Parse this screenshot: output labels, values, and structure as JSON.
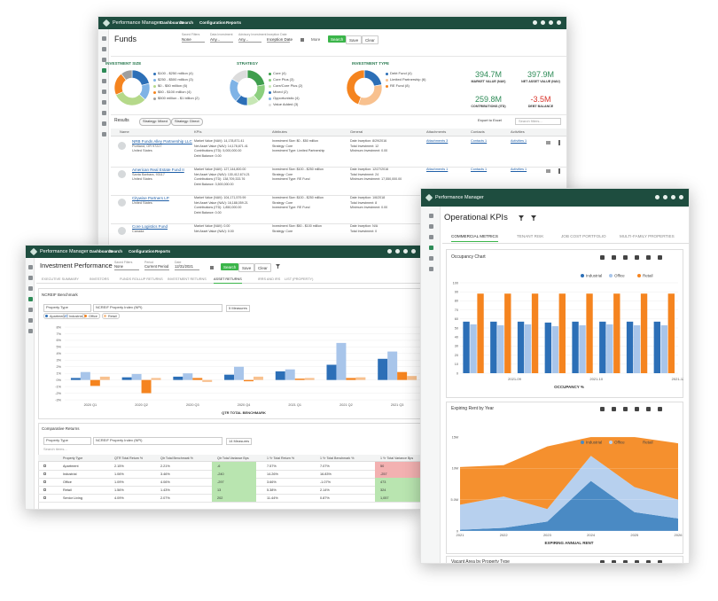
{
  "funds_window": {
    "nav": {
      "brand": "Performance Manager",
      "items": [
        "Dashboards",
        "Search",
        "Configuration",
        "Reports"
      ]
    },
    "title": "Funds",
    "filters": [
      {
        "label": "Saved Filters",
        "value": "None"
      },
      {
        "label": "Data Investment",
        "value": "Any..."
      },
      {
        "label": "Advisory Investment",
        "value": "Any..."
      },
      {
        "label": "Inception Date",
        "value": "Inception Date"
      }
    ],
    "more": "More",
    "buttons": [
      "Search",
      "Save",
      "Clear"
    ],
    "donuts": [
      {
        "title": "INVESTMENT SIZE",
        "labels": [
          "$100 - $250 million (4)",
          "$250 - $500 million (3)",
          "$0 - $50 million (6)",
          "$50 - $100 million (4)",
          "$500 million - $1 billion (2)"
        ],
        "values": [
          4,
          3,
          6,
          4,
          2
        ],
        "colors": [
          "#2c6fb7",
          "#7fb3e6",
          "#b5d98a",
          "#f5841f",
          "#9e9e9e"
        ]
      },
      {
        "title": "STRATEGY",
        "labels": [
          "Core (4)",
          "Core Plus (3)",
          "Core/Core Plus (2)",
          "Mixed (2)",
          "Opportunistic (4)",
          "Value Added (3)"
        ],
        "values": [
          4,
          3,
          2,
          2,
          4,
          3
        ],
        "colors": [
          "#3f9e4d",
          "#8ccf7e",
          "#c7e7b5",
          "#2c6fb7",
          "#7fb3e6",
          "#dcdcdc"
        ]
      },
      {
        "title": "INVESTMENT TYPE",
        "labels": [
          "Debt Fund (4)",
          "Limited Partnership (6)",
          "RE Fund (8)"
        ],
        "values": [
          4,
          6,
          8
        ],
        "colors": [
          "#2c6fb7",
          "#f8c18f",
          "#f5841f"
        ]
      }
    ],
    "kpis": [
      {
        "value": "394.7M",
        "label": "MARKET VALUE (NAV)"
      },
      {
        "value": "397.9M",
        "label": "NET ASSET VALUE (NAV)"
      },
      {
        "value": "259.8M",
        "label": "CONTRIBUTIONS (ITD)"
      },
      {
        "value": "-3.5M",
        "label": "DEBT BALANCE"
      }
    ],
    "results": {
      "label": "Results",
      "chips": [
        "Strategy: Mixed",
        "Strategy: Direct"
      ],
      "export": "Export to Excel",
      "search": "Search filters..."
    },
    "columns": [
      "Name",
      "KPIs",
      "Attributes",
      "General",
      "Attachments",
      "Contacts",
      "Activities"
    ],
    "rows": [
      {
        "name": "NRB Funds Alley Partnership LLC",
        "lines": [
          "Portland, OR 97227",
          "United States"
        ],
        "kpis": [
          "Market Value (NAV): 14,178,871.41",
          "Net Asset Value (NAV): 14,178,871.41",
          "Contributions (ITD): 5,000,000.00",
          "Debt Balance: 0.00"
        ],
        "attributes": [
          "Investment Size: $0 - $50 million",
          "Strategy: Core",
          "Investment Type: Limited Partnership"
        ],
        "general": [
          "Date Inception: 8/29/2016",
          "Total Investment: 12",
          "Minimum Investment: 0.00"
        ],
        "attachments": "Attachments 3",
        "contacts": "Contacts 1",
        "activities": "Activities 1"
      },
      {
        "name": "American Real Estate Fund II",
        "lines": [
          "Santa Barbara, 93117",
          "United States"
        ],
        "kpis": [
          "Market Value (NAV): 127,144,800.00",
          "Net Asset Value (NAV): 130,412,674.21",
          "Contributions (ITD): 138,709,333.76",
          "Debt Balance: 3,500,000.00"
        ],
        "attributes": [
          "Investment Size: $100 - $250 million",
          "Strategy: Core",
          "Investment Type: RE Fund"
        ],
        "general": [
          "Date Inception: 12/27/2016",
          "Total Investment: 24",
          "Minimum Investment: 17,550,000.00"
        ],
        "attachments": "Attachments 1",
        "contacts": "Contacts 1",
        "activities": "Activities 1"
      },
      {
        "name": "Citywise Partners LP",
        "lines": [
          "United States"
        ],
        "kpis": [
          "Market Value (NAV): 104,171,579.99",
          "Net Asset Value (NAV): 16,188,059.21",
          "Contributions (ITD): 1,850,000.00",
          "Debt Balance: 0.00"
        ],
        "attributes": [
          "Investment Size: $100 - $250 million",
          "Strategy: Core",
          "Investment Type: RE Fund"
        ],
        "general": [
          "Date Inception: 1/6/2018",
          "Total Investment: 8",
          "Minimum Investment: 0.00"
        ],
        "attachments": "Attachments 1",
        "contacts": "Contacts 1",
        "activities": "Activities 1"
      },
      {
        "name": "Core Logistics Fund",
        "lines": [
          "Canada"
        ],
        "kpis": [
          "Market Value (NAV): 0.00",
          "Net Asset Value (NAV): 0.00"
        ],
        "attributes": [
          "Investment Size: $50 - $100 million",
          "Strategy: Core"
        ],
        "general": [
          "Date Inception: N/A",
          "Total Investment: 0"
        ],
        "attachments": "Attachments 0",
        "contacts": "Contacts 0",
        "activities": "Activities 0"
      }
    ]
  },
  "performance_window": {
    "nav": {
      "brand": "Performance Manager",
      "items": [
        "Dashboards",
        "Search",
        "Configuration",
        "Reports"
      ]
    },
    "title": "Investment Performance",
    "filters": [
      {
        "label": "Saved Filters",
        "value": "None"
      },
      {
        "label": "Period",
        "value": "Current Period"
      },
      {
        "label": "Date",
        "value": "12/31/2021"
      }
    ],
    "buttons": [
      "Search",
      "Save",
      "Clear"
    ],
    "tabs": [
      "EXECUTIVE SUMMARY",
      "INVESTORS",
      "FUNDS ROLLUP RETURNS",
      "INVESTMENT RETURNS",
      "ASSET RETURNS",
      "IRRS AND IRS",
      "LIST (PROPERTY)"
    ],
    "benchmark": {
      "title": "NCREIF Benchmark",
      "selects": [
        "Property Type",
        "NCREIF Property Index (NPI)"
      ],
      "measures": "5 Measures",
      "chart": {
        "type": "bar",
        "x_label": "QTR TOTAL BENCHMARK",
        "categories": [
          "2020 Q1",
          "2020 Q2",
          "2020 Q3",
          "2020 Q4",
          "2021 Q1",
          "2021 Q2",
          "2021 Q3"
        ],
        "series": [
          {
            "name": "Apartment",
            "color": "#2c6fb7",
            "values": [
              0.3,
              0.4,
              0.5,
              0.8,
              1.3,
              2.3,
              3.2
            ]
          },
          {
            "name": "Industrial",
            "color": "#a8c5ea",
            "values": [
              1.2,
              0.9,
              1.0,
              2.0,
              1.6,
              5.6,
              4.3
            ]
          },
          {
            "name": "Office",
            "color": "#f5841f",
            "values": [
              -0.9,
              -2.0,
              0.3,
              -0.2,
              0.2,
              0.3,
              1.2
            ]
          },
          {
            "name": "Retail",
            "color": "#f8c18f",
            "values": [
              0.5,
              0.3,
              -0.3,
              0.5,
              0.3,
              0.4,
              0.6
            ]
          }
        ],
        "ylim": [
          -3,
          8
        ],
        "yticks": [
          {
            "value": 8,
            "label": "8%"
          },
          {
            "value": 7,
            "label": "7%"
          },
          {
            "value": 6,
            "label": "6%"
          },
          {
            "value": 5,
            "label": "5%"
          },
          {
            "value": 4,
            "label": "4%"
          },
          {
            "value": 3,
            "label": "3%"
          },
          {
            "value": 2,
            "label": "2%"
          },
          {
            "value": 1,
            "label": "1%"
          },
          {
            "value": 0,
            "label": "0%"
          },
          {
            "value": -1,
            "label": "-1%"
          },
          {
            "value": -2,
            "label": "-2%"
          },
          {
            "value": -3,
            "label": "-3%"
          }
        ],
        "grid": true
      }
    },
    "comparative": {
      "title": "Comparative Returns",
      "selects": [
        "Property Type",
        "NCREIF Property Index (NPI)"
      ],
      "measures": "14 Measures",
      "search": "Search items...",
      "columns": [
        "Property Type",
        "QTR Total Return %",
        "Qtr Total Benchmark %",
        "Qtr Total Variance Bps",
        "1 Yr Total Return %",
        "1 Yr Total Benchmark %",
        "1 Yr Total Variance Bps"
      ],
      "rows": [
        [
          "Apartment",
          "2.15%",
          "2.21%",
          "-6",
          "7.57%",
          "7.07%",
          "50"
        ],
        [
          "Industrial",
          "1.06%",
          "3.46%",
          "-240",
          "14.26%",
          "16.83%",
          "-257"
        ],
        [
          "Office",
          "1.09%",
          "4.06%",
          "-297",
          "3.66%",
          "-1.07%",
          "473"
        ],
        [
          "Retail",
          "1.56%",
          "1.43%",
          "13",
          "5.38%",
          "2.14%",
          "324"
        ],
        [
          "Senior Living",
          "4.09%",
          "2.07%",
          "202",
          "11.44%",
          "0.87%",
          "1,057"
        ]
      ]
    }
  },
  "kpi_window": {
    "nav": {
      "brand": "Performance Manager"
    },
    "title": "Operational KPIs",
    "tabs": [
      "COMMERCIAL METRICS",
      "TENANT RISK",
      "JOB COST PORTFOLIO",
      "MULTI-FAMILY PROPERTIES"
    ],
    "occupancy": {
      "title": "Occupancy Chart",
      "chart": {
        "type": "bar",
        "x_label": "OCCUPANCY %",
        "categories": [
          null,
          "2021-09",
          null,
          null,
          "2021-10",
          null,
          null,
          "2021-12"
        ],
        "series": [
          {
            "name": "Industrial",
            "color": "#2c6fb7",
            "values": [
              57,
              57,
              57,
              56,
              57,
              57,
              57,
              57
            ]
          },
          {
            "name": "Office",
            "color": "#a8c5ea",
            "values": [
              54,
              53,
              54,
              52,
              53,
              54,
              53,
              53
            ]
          },
          {
            "name": "Retail",
            "color": "#f5841f",
            "values": [
              88,
              88,
              88,
              88,
              88,
              88,
              88,
              88
            ]
          }
        ],
        "ylim": [
          0,
          100
        ],
        "yticks": [
          0,
          10,
          20,
          30,
          40,
          50,
          60,
          70,
          80,
          90,
          100
        ],
        "grid": true
      }
    },
    "expiring": {
      "title": "Expiring Rent by Year",
      "chart": {
        "type": "stacked_area",
        "x_label": "EXPIRING ANNUAL RENT",
        "categories": [
          "2021",
          "2022",
          "2023",
          "2024",
          "2025",
          "2026"
        ],
        "series": [
          {
            "name": "Industrial",
            "color": "#4a8ac4",
            "values": [
              200000,
              500000,
              1500000,
              8000000,
              3000000,
              2000000
            ]
          },
          {
            "name": "Office",
            "color": "#b7d0ee",
            "values": [
              4000000,
              5000000,
              2000000,
              4000000,
              4000000,
              3000000
            ]
          },
          {
            "name": "Retail",
            "color": "#f5902e",
            "values": [
              6000000,
              5000000,
              10000000,
              3000000,
              8000000,
              9000000
            ]
          }
        ],
        "ylim": [
          0,
          15000000
        ],
        "yticks": [
          0,
          {
            "value": 5000000,
            "label": "5.0M"
          },
          {
            "value": 10000000,
            "label": "10M"
          },
          {
            "value": 15000000,
            "label": "15M"
          }
        ],
        "grid": true
      }
    },
    "vacant": {
      "title": "Vacant Area by Property Type"
    }
  }
}
